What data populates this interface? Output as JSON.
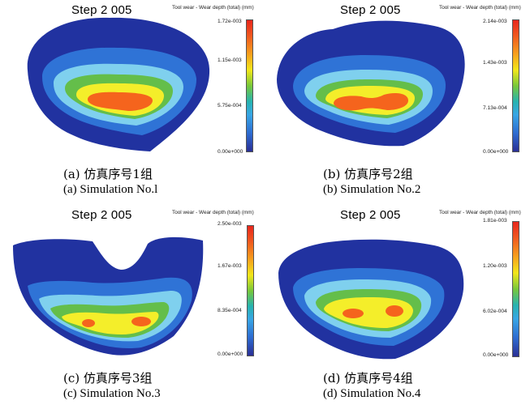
{
  "colors": {
    "navy": "#2132a0",
    "blue": "#2f73d6",
    "light_blue": "#7fd0ee",
    "green": "#64be4a",
    "yellow": "#f4ee2a",
    "orange": "#f5641d",
    "bar_top": "#e8261c",
    "bar_bottom": "#2a2f95"
  },
  "panels": [
    {
      "step": "Step 2 005",
      "legend_title": "Tool wear - Wear depth (total) (mm)",
      "ticks": [
        "1.72e-003",
        "1.15e-003",
        "5.75e-004",
        "0.00e+000"
      ],
      "caption_cn": "(a) 仿真序号1组",
      "caption_en": "(a) Simulation No.l"
    },
    {
      "step": "Step 2 005",
      "legend_title": "Tool wear - Wear depth (total) (mm)",
      "ticks": [
        "2.14e-003",
        "1.43e-003",
        "7.13e-004",
        "0.00e+000"
      ],
      "caption_cn": "(b) 仿真序号2组",
      "caption_en": "(b) Simulation No.2"
    },
    {
      "step": "Step 2 005",
      "legend_title": "Tool wear - Wear depth (total) (mm)",
      "ticks": [
        "2.50e-003",
        "1.67e-003",
        "8.35e-004",
        "0.00e+000"
      ],
      "caption_cn": "(c) 仿真序号3组",
      "caption_en": "(c) Simulation No.3"
    },
    {
      "step": "Step 2 005",
      "legend_title": "Tool wear - Wear depth (total) (mm)",
      "ticks": [
        "1.81e-003",
        "1.20e-003",
        "6.02e-004",
        "0.00e+000"
      ],
      "caption_cn": "(d) 仿真序号4组",
      "caption_en": "(d) Simulation No.4"
    }
  ]
}
